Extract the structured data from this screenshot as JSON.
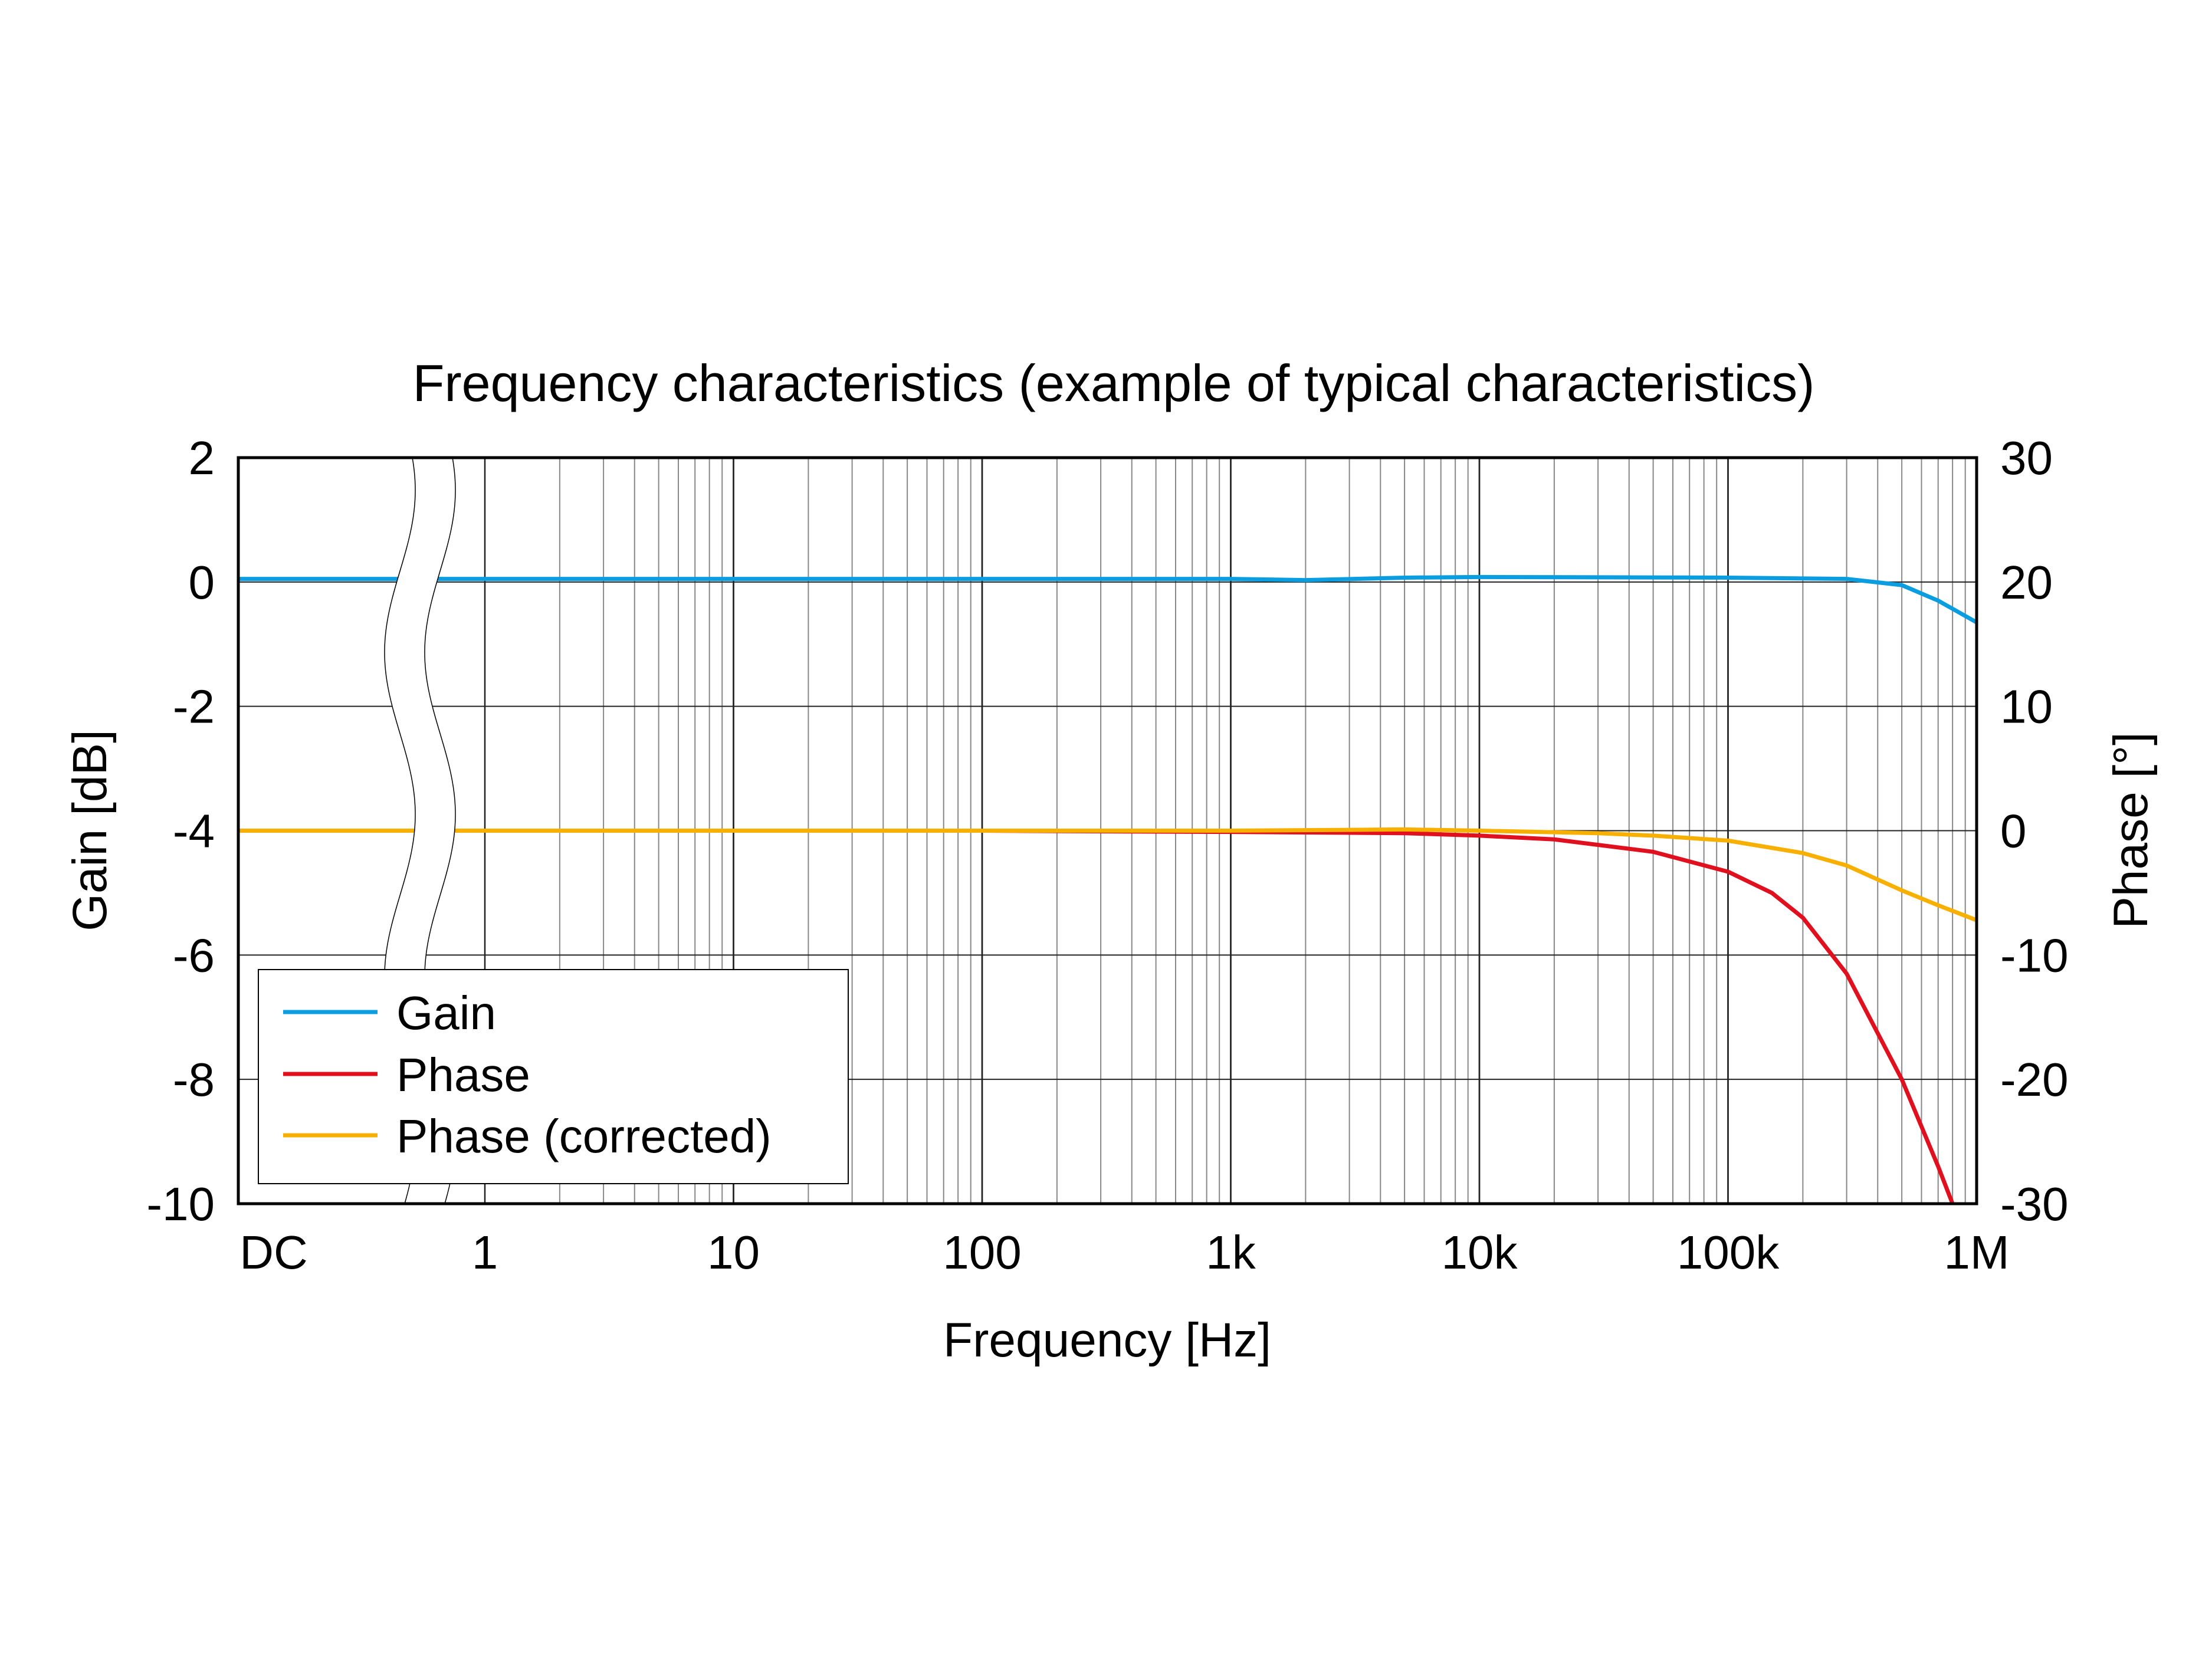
{
  "chart_data": {
    "type": "line",
    "title": "Frequency characteristics (example of typical characteristics)",
    "xlabel": "Frequency [Hz]",
    "ylabel": "Gain [dB]",
    "y2label": "Phase [°]",
    "x_scale": "log with DC break",
    "x_ticks": [
      "DC",
      "1",
      "10",
      "100",
      "1k",
      "10k",
      "100k",
      "1M"
    ],
    "x_tick_values": [
      0,
      1,
      10,
      100,
      1000,
      10000,
      100000,
      1000000
    ],
    "xlim": [
      1,
      1000000
    ],
    "ylim": [
      -10,
      2
    ],
    "y_ticks": [
      "2",
      "0",
      "-2",
      "-4",
      "-6",
      "-8",
      "-10"
    ],
    "y2lim": [
      -30,
      30
    ],
    "y2_ticks": [
      "30",
      "20",
      "10",
      "0",
      "-10",
      "-20",
      "-30"
    ],
    "grid": true,
    "legend_position": "bottom-left",
    "series": [
      {
        "name": "Gain",
        "axis": "left",
        "color": "#0a9ee0",
        "x": [
          "DC",
          1,
          10,
          100,
          1000,
          2000,
          5000,
          10000,
          100000,
          300000,
          500000,
          700000,
          1000000
        ],
        "y": [
          0.05,
          0.05,
          0.05,
          0.05,
          0.05,
          0.03,
          0.07,
          0.08,
          0.07,
          0.05,
          -0.05,
          -0.3,
          -0.65
        ]
      },
      {
        "name": "Phase",
        "axis": "right",
        "color": "#e0101f",
        "x": [
          "DC",
          1,
          100,
          1000,
          5000,
          10000,
          20000,
          50000,
          100000,
          150000,
          200000,
          300000,
          500000,
          700000,
          800000
        ],
        "y": [
          0,
          0,
          0,
          -0.1,
          -0.2,
          -0.4,
          -0.7,
          -1.7,
          -3.3,
          -5,
          -7,
          -11.5,
          -20,
          -27,
          -30
        ]
      },
      {
        "name": "Phase (corrected)",
        "axis": "right",
        "color": "#f8b000",
        "x": [
          "DC",
          1,
          100,
          1000,
          5000,
          10000,
          30000,
          50000,
          100000,
          200000,
          300000,
          500000,
          700000,
          1000000
        ],
        "y": [
          0,
          0,
          0,
          0,
          0.1,
          0,
          -0.2,
          -0.4,
          -0.8,
          -1.8,
          -2.8,
          -4.8,
          -6,
          -7.2
        ]
      }
    ]
  }
}
